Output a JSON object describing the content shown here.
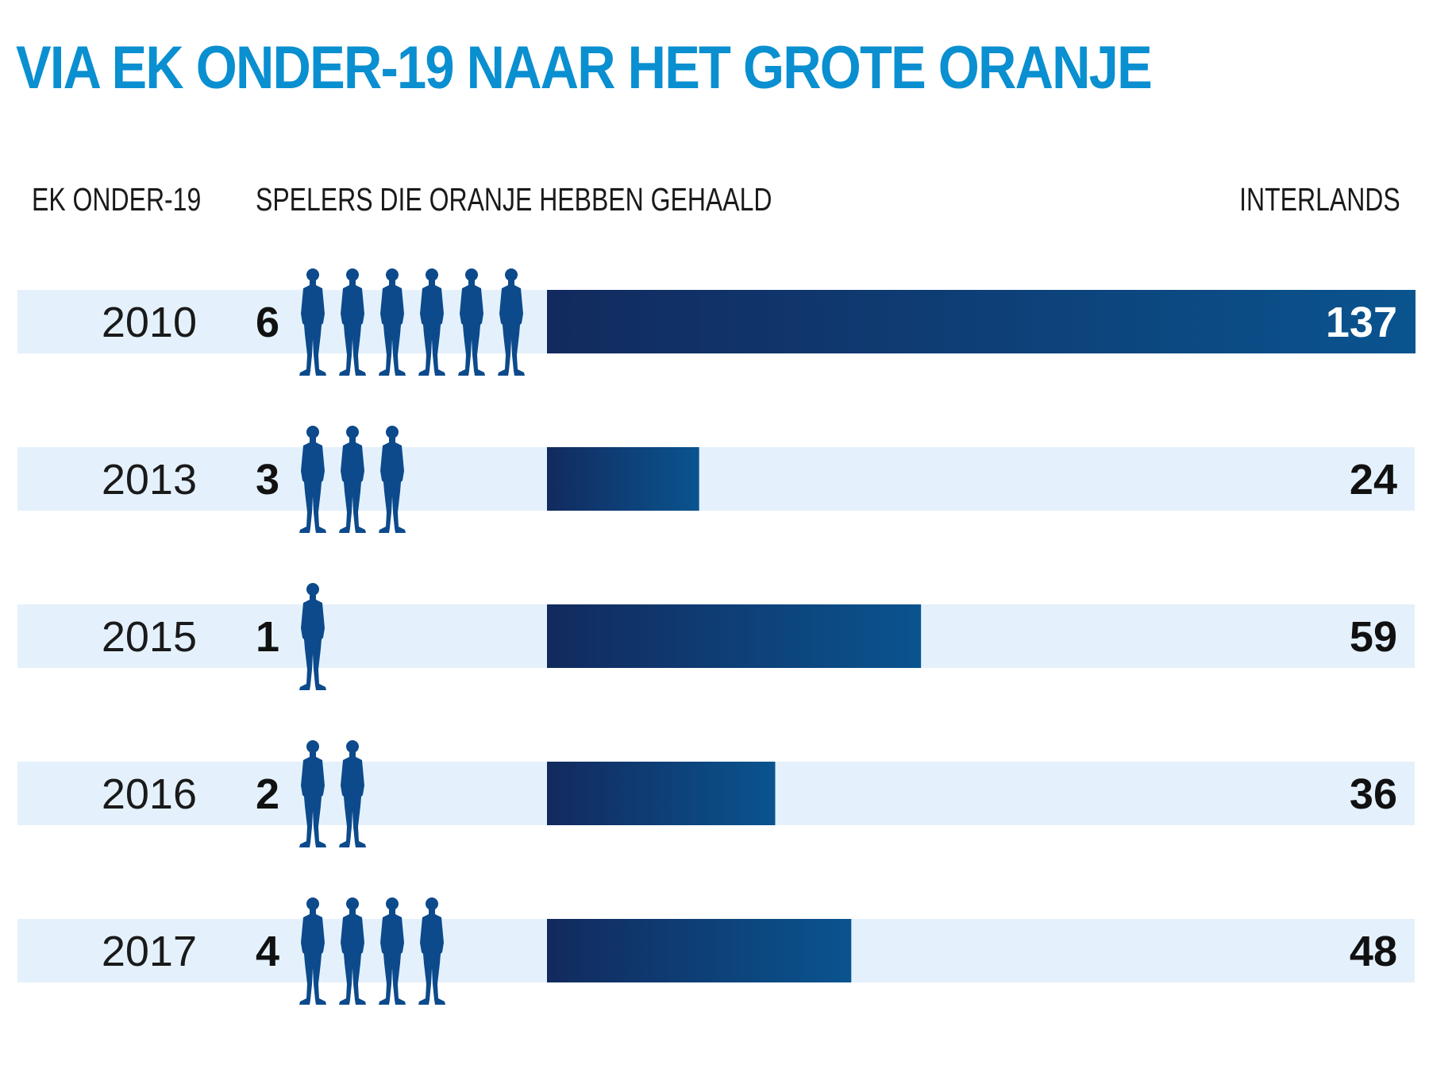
{
  "title": "VIA EK ONDER-19 NAAR HET GROTE ORANJE",
  "headers": {
    "year": "EK ONDER-19",
    "players": "SPELERS DIE ORANJE HEBBEN GEHAALD",
    "caps": "INTERLANDS"
  },
  "colors": {
    "title": "#0a8fd0",
    "band": "#e4f1fc",
    "bar_dark": "#122a5e",
    "bar_light": "#0a548f",
    "silhouette": "#0c4a8c"
  },
  "icons": {
    "player": "player-silhouette-icon"
  },
  "chart_data": {
    "type": "bar",
    "orientation": "horizontal",
    "title": "VIA EK ONDER-19 NAAR HET GROTE ORANJE",
    "categories": [
      "2010",
      "2013",
      "2015",
      "2016",
      "2017"
    ],
    "players": [
      6,
      3,
      1,
      2,
      4
    ],
    "values": [
      137,
      24,
      59,
      36,
      48
    ],
    "xlim": [
      0,
      137
    ],
    "grid": false
  }
}
